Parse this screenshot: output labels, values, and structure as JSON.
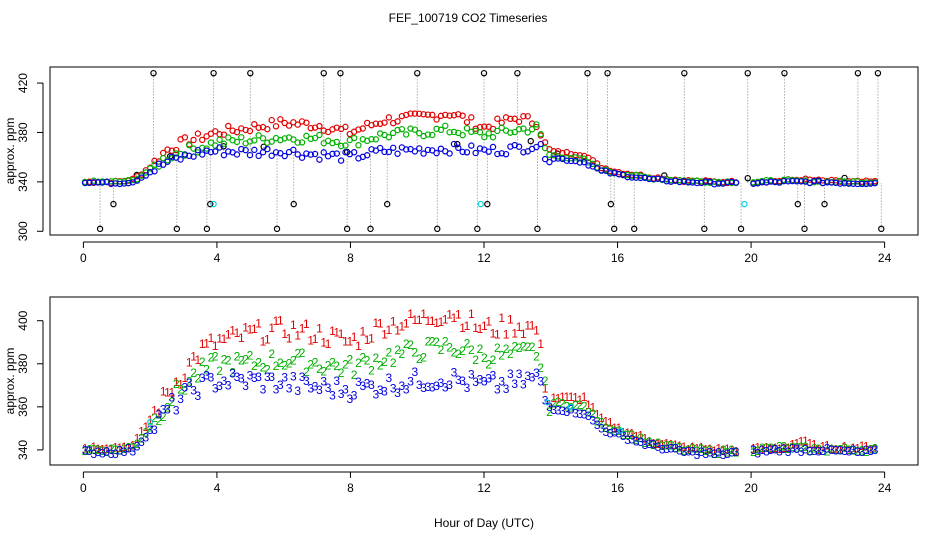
{
  "title": "FEF_100719  CO2 Timeseries",
  "colors": {
    "s1": "#e00000",
    "s2": "#00b000",
    "s3": "#0000e0",
    "other": "#000000",
    "cyan": "#00d0e0"
  },
  "chart_data": [
    {
      "type": "scatter",
      "title": "FEF_100719  CO2 Timeseries",
      "ylabel": "approx. ppm",
      "xlabel": "",
      "xlim": [
        -1,
        25
      ],
      "ylim": [
        297,
        433
      ],
      "xticks": [
        0,
        4,
        8,
        12,
        16,
        20,
        24
      ],
      "yticks": [
        300,
        340,
        380,
        420
      ],
      "ytick_labels": [
        "300",
        "340",
        "380",
        "420"
      ],
      "spike_high_ppm": 428,
      "spike_low_ppm": 302,
      "cyan_points": [
        [
          3.9,
          322
        ],
        [
          11.9,
          322
        ],
        [
          19.8,
          322
        ]
      ],
      "curve_1": [
        [
          0,
          340
        ],
        [
          1,
          340
        ],
        [
          1.5,
          342
        ],
        [
          2,
          352
        ],
        [
          2.5,
          366
        ],
        [
          3,
          372
        ],
        [
          3.5,
          376
        ],
        [
          4,
          380
        ],
        [
          5,
          384
        ],
        [
          6,
          388
        ],
        [
          7,
          386
        ],
        [
          8,
          380
        ],
        [
          9,
          390
        ],
        [
          10,
          392
        ],
        [
          11,
          396
        ],
        [
          12,
          384
        ],
        [
          13,
          392
        ],
        [
          13.6,
          388
        ],
        [
          13.9,
          365
        ],
        [
          15,
          362
        ],
        [
          15.5,
          352
        ],
        [
          16,
          348
        ],
        [
          17,
          344
        ],
        [
          18,
          341
        ],
        [
          19,
          340
        ],
        [
          20,
          340
        ],
        [
          21,
          341
        ],
        [
          21.5,
          342
        ],
        [
          22,
          341
        ],
        [
          23,
          340
        ],
        [
          23.8,
          340
        ]
      ],
      "curve_2": [
        [
          0,
          340
        ],
        [
          1,
          340
        ],
        [
          1.5,
          341
        ],
        [
          2,
          350
        ],
        [
          2.5,
          360
        ],
        [
          3,
          365
        ],
        [
          3.5,
          368
        ],
        [
          4,
          372
        ],
        [
          5,
          374
        ],
        [
          6,
          376
        ],
        [
          7,
          375
        ],
        [
          8,
          372
        ],
        [
          9,
          378
        ],
        [
          10,
          380
        ],
        [
          11,
          382
        ],
        [
          12,
          378
        ],
        [
          13,
          382
        ],
        [
          13.6,
          384
        ],
        [
          13.9,
          362
        ],
        [
          15,
          358
        ],
        [
          15.5,
          350
        ],
        [
          16,
          347
        ],
        [
          17,
          343
        ],
        [
          18,
          341
        ],
        [
          19,
          340
        ],
        [
          20,
          340
        ],
        [
          21,
          341
        ],
        [
          22,
          340
        ],
        [
          23,
          340
        ],
        [
          23.8,
          340
        ]
      ],
      "curve_3": [
        [
          0,
          340
        ],
        [
          1,
          339
        ],
        [
          1.5,
          340
        ],
        [
          2,
          348
        ],
        [
          2.5,
          356
        ],
        [
          3,
          360
        ],
        [
          3.5,
          364
        ],
        [
          4,
          365
        ],
        [
          5,
          364
        ],
        [
          6,
          365
        ],
        [
          7,
          362
        ],
        [
          8,
          360
        ],
        [
          9,
          365
        ],
        [
          10,
          366
        ],
        [
          11,
          367
        ],
        [
          12,
          365
        ],
        [
          13,
          367
        ],
        [
          13.6,
          370
        ],
        [
          13.9,
          360
        ],
        [
          15,
          356
        ],
        [
          15.5,
          349
        ],
        [
          16,
          346
        ],
        [
          17,
          342
        ],
        [
          18,
          340
        ],
        [
          19,
          339
        ],
        [
          20,
          339
        ],
        [
          21,
          340
        ],
        [
          22,
          340
        ],
        [
          23,
          339
        ],
        [
          23.8,
          339
        ]
      ]
    },
    {
      "type": "scatter",
      "title": "",
      "ylabel": "approx. ppm",
      "xlabel": "Hour of Day (UTC)",
      "xlim": [
        -1,
        25
      ],
      "ylim": [
        333,
        411
      ],
      "xticks": [
        0,
        4,
        8,
        12,
        16,
        20,
        24
      ],
      "yticks": [
        340,
        360,
        380,
        400
      ],
      "ytick_labels": [
        "340",
        "360",
        "380",
        "400"
      ],
      "series": [
        {
          "name": "1",
          "color_key": "s1"
        },
        {
          "name": "2",
          "color_key": "s2"
        },
        {
          "name": "3",
          "color_key": "s3"
        }
      ],
      "curve_1": [
        [
          0,
          341
        ],
        [
          1,
          341
        ],
        [
          1.5,
          342
        ],
        [
          2,
          354
        ],
        [
          2.5,
          366
        ],
        [
          3,
          376
        ],
        [
          3.5,
          386
        ],
        [
          4,
          390
        ],
        [
          5,
          394
        ],
        [
          6,
          396
        ],
        [
          7,
          394
        ],
        [
          8,
          390
        ],
        [
          9,
          398
        ],
        [
          10,
          400
        ],
        [
          11,
          404
        ],
        [
          12,
          396
        ],
        [
          13,
          398
        ],
        [
          13.6,
          396
        ],
        [
          13.9,
          364
        ],
        [
          15,
          364
        ],
        [
          15.5,
          354
        ],
        [
          16,
          350
        ],
        [
          17,
          344
        ],
        [
          18,
          341
        ],
        [
          19,
          340
        ],
        [
          20,
          340
        ],
        [
          21,
          341
        ],
        [
          21.5,
          344
        ],
        [
          22,
          341
        ],
        [
          23,
          341
        ],
        [
          23.8,
          341
        ]
      ],
      "curve_2": [
        [
          0,
          340
        ],
        [
          1,
          340
        ],
        [
          1.5,
          341
        ],
        [
          2,
          351
        ],
        [
          2.5,
          362
        ],
        [
          3,
          370
        ],
        [
          3.5,
          376
        ],
        [
          4,
          380
        ],
        [
          5,
          380
        ],
        [
          6,
          382
        ],
        [
          7,
          380
        ],
        [
          8,
          378
        ],
        [
          9,
          383
        ],
        [
          10,
          386
        ],
        [
          11,
          388
        ],
        [
          12,
          384
        ],
        [
          13,
          384
        ],
        [
          13.6,
          386
        ],
        [
          13.9,
          362
        ],
        [
          15,
          360
        ],
        [
          15.5,
          352
        ],
        [
          16,
          349
        ],
        [
          17,
          343
        ],
        [
          18,
          340
        ],
        [
          19,
          339
        ],
        [
          20,
          340
        ],
        [
          21,
          341
        ],
        [
          22,
          340
        ],
        [
          23,
          340
        ],
        [
          23.8,
          340
        ]
      ],
      "curve_3": [
        [
          0,
          339
        ],
        [
          1,
          339
        ],
        [
          1.5,
          340
        ],
        [
          2,
          349
        ],
        [
          2.5,
          358
        ],
        [
          3,
          365
        ],
        [
          3.5,
          370
        ],
        [
          4,
          372
        ],
        [
          5,
          372
        ],
        [
          6,
          371
        ],
        [
          7,
          369
        ],
        [
          8,
          368
        ],
        [
          9,
          370
        ],
        [
          10,
          372
        ],
        [
          11,
          373
        ],
        [
          12,
          370
        ],
        [
          13,
          371
        ],
        [
          13.6,
          374
        ],
        [
          13.9,
          360
        ],
        [
          15,
          357
        ],
        [
          15.5,
          350
        ],
        [
          16,
          347
        ],
        [
          17,
          342
        ],
        [
          18,
          339
        ],
        [
          19,
          338
        ],
        [
          20,
          339
        ],
        [
          21,
          340
        ],
        [
          22,
          340
        ],
        [
          23,
          339
        ],
        [
          23.8,
          339
        ]
      ]
    }
  ]
}
